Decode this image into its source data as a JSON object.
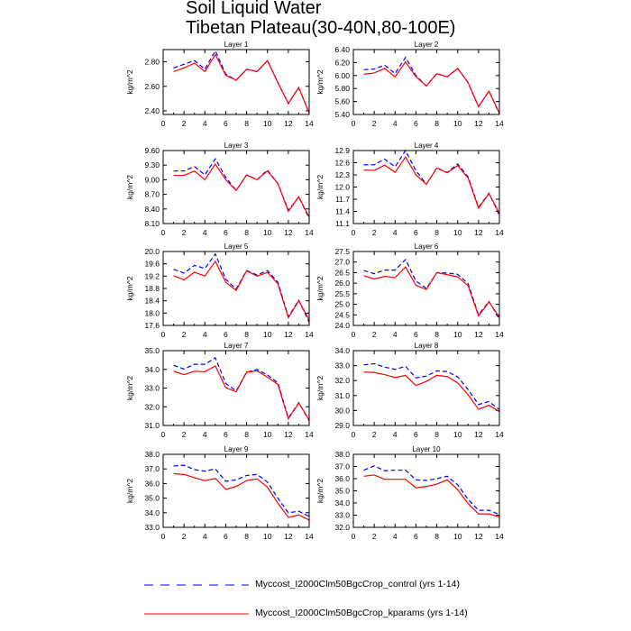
{
  "chart_data": {
    "type": "line",
    "title": "Soil Liquid Water",
    "subtitle": "Tibetan Plateau(30-40N,80-100E)",
    "x": [
      1,
      2,
      3,
      4,
      5,
      6,
      7,
      8,
      9,
      10,
      11,
      12,
      13,
      14
    ],
    "xlim": [
      0,
      14
    ],
    "xticks": [
      "0",
      "2",
      "4",
      "6",
      "8",
      "10",
      "12",
      "14"
    ],
    "ylabel": "kg/m^2",
    "legend": {
      "position": "bottom",
      "entries": [
        {
          "name": "Myccost_I2000Clm50BgcCrop_control (yrs 1-14)",
          "color": "#0000ff",
          "style": "dashed"
        },
        {
          "name": "Myccost_I2000Clm50BgcCrop_kparams (yrs 1-14)",
          "color": "#ff0000",
          "style": "solid"
        }
      ]
    },
    "panels": [
      {
        "title": "Layer 1",
        "ylim": [
          2.37,
          2.9
        ],
        "yticks": [
          "2.40",
          "2.60",
          "2.80"
        ],
        "control": [
          2.75,
          2.78,
          2.81,
          2.74,
          2.89,
          2.7,
          2.65,
          2.74,
          2.72,
          2.81,
          2.63,
          2.46,
          2.59,
          2.38
        ],
        "kparams": [
          2.72,
          2.75,
          2.79,
          2.72,
          2.86,
          2.69,
          2.65,
          2.74,
          2.72,
          2.81,
          2.63,
          2.46,
          2.59,
          2.38
        ]
      },
      {
        "title": "Layer 2",
        "ylim": [
          5.4,
          6.4
        ],
        "yticks": [
          "5.40",
          "5.60",
          "5.80",
          "6.00",
          "6.20",
          "6.40"
        ],
        "control": [
          6.09,
          6.1,
          6.16,
          6.03,
          6.28,
          6.0,
          5.84,
          6.03,
          5.98,
          6.11,
          5.89,
          5.52,
          5.76,
          5.41
        ],
        "kparams": [
          6.02,
          6.04,
          6.11,
          5.98,
          6.21,
          5.98,
          5.84,
          6.03,
          5.98,
          6.11,
          5.89,
          5.52,
          5.76,
          5.42
        ]
      },
      {
        "title": "Layer 3",
        "ylim": [
          8.1,
          9.6
        ],
        "yticks": [
          "8.10",
          "8.40",
          "8.70",
          "9.00",
          "9.30",
          "9.60"
        ],
        "control": [
          9.18,
          9.18,
          9.27,
          9.1,
          9.43,
          9.05,
          8.78,
          9.1,
          9.0,
          9.2,
          8.92,
          8.37,
          8.65,
          8.2
        ],
        "kparams": [
          9.09,
          9.09,
          9.18,
          9.0,
          9.32,
          9.0,
          8.78,
          9.1,
          9.0,
          9.18,
          8.92,
          8.35,
          8.65,
          8.23
        ]
      },
      {
        "title": "Layer 4",
        "ylim": [
          11.1,
          12.9
        ],
        "yticks": [
          "11.1",
          "11.4",
          "11.7",
          "12.0",
          "12.3",
          "12.6",
          "12.9"
        ],
        "control": [
          12.55,
          12.55,
          12.69,
          12.5,
          12.9,
          12.4,
          12.07,
          12.47,
          12.36,
          12.57,
          12.25,
          11.5,
          11.85,
          11.3
        ],
        "kparams": [
          12.42,
          12.41,
          12.54,
          12.36,
          12.74,
          12.3,
          12.07,
          12.47,
          12.35,
          12.53,
          12.22,
          11.48,
          11.84,
          11.35
        ]
      },
      {
        "title": "Layer 5",
        "ylim": [
          17.6,
          20.0
        ],
        "yticks": [
          "17.6",
          "18.0",
          "18.4",
          "18.8",
          "19.2",
          "19.6",
          "20.0"
        ],
        "control": [
          19.42,
          19.3,
          19.55,
          19.45,
          19.92,
          19.1,
          18.78,
          19.38,
          19.24,
          19.38,
          19.0,
          17.88,
          18.42,
          17.7
        ],
        "kparams": [
          19.21,
          19.08,
          19.33,
          19.2,
          19.68,
          19.0,
          18.74,
          19.37,
          19.2,
          19.32,
          18.95,
          17.85,
          18.4,
          17.78
        ]
      },
      {
        "title": "Layer 6",
        "ylim": [
          24.0,
          27.5
        ],
        "yticks": [
          "24.0",
          "24.5",
          "25.0",
          "25.5",
          "26.0",
          "26.5",
          "27.0",
          "27.5"
        ],
        "control": [
          26.6,
          26.45,
          26.62,
          26.62,
          27.12,
          26.1,
          25.75,
          26.5,
          26.48,
          26.42,
          25.98,
          24.5,
          25.14,
          24.3
        ],
        "kparams": [
          26.35,
          26.2,
          26.32,
          26.26,
          26.77,
          25.9,
          25.7,
          26.5,
          26.4,
          26.3,
          25.88,
          24.45,
          25.12,
          24.38
        ]
      },
      {
        "title": "Layer 7",
        "ylim": [
          31.0,
          35.0
        ],
        "yticks": [
          "31.0",
          "32.0",
          "33.0",
          "34.0",
          "35.0"
        ],
        "control": [
          34.22,
          34.02,
          34.27,
          34.27,
          34.62,
          33.25,
          32.85,
          33.85,
          34.0,
          33.7,
          33.28,
          31.4,
          32.22,
          31.25
        ],
        "kparams": [
          33.9,
          33.72,
          33.9,
          33.87,
          34.18,
          33.02,
          32.8,
          33.85,
          33.92,
          33.58,
          33.2,
          31.35,
          32.2,
          31.3
        ]
      },
      {
        "title": "Layer 8",
        "ylim": [
          29.0,
          34.0
        ],
        "yticks": [
          "29.0",
          "30.0",
          "31.0",
          "32.0",
          "33.0",
          "34.0"
        ],
        "control": [
          33.05,
          33.13,
          32.9,
          32.75,
          32.95,
          32.18,
          32.3,
          32.65,
          32.6,
          32.25,
          31.4,
          30.4,
          30.6,
          30.05
        ],
        "kparams": [
          32.57,
          32.54,
          32.4,
          32.2,
          32.35,
          31.67,
          31.95,
          32.35,
          32.27,
          31.85,
          31.05,
          30.08,
          30.35,
          29.92
        ]
      },
      {
        "title": "Layer 9",
        "ylim": [
          33.0,
          38.0
        ],
        "yticks": [
          "33.0",
          "34.0",
          "35.0",
          "36.0",
          "37.0",
          "38.0"
        ],
        "control": [
          37.2,
          37.25,
          36.95,
          36.85,
          37.0,
          36.15,
          36.25,
          36.55,
          36.62,
          36.1,
          35.0,
          34.0,
          34.1,
          33.75
        ],
        "kparams": [
          36.68,
          36.62,
          36.4,
          36.2,
          36.35,
          35.6,
          35.8,
          36.2,
          36.32,
          35.75,
          34.65,
          33.68,
          33.85,
          33.5
        ]
      },
      {
        "title": "Layer 10",
        "ylim": [
          32.0,
          38.0
        ],
        "yticks": [
          "32.0",
          "33.0",
          "34.0",
          "35.0",
          "36.0",
          "37.0",
          "38.0"
        ],
        "control": [
          36.7,
          37.05,
          36.65,
          36.7,
          36.7,
          35.9,
          35.85,
          36.0,
          36.2,
          35.5,
          34.3,
          33.4,
          33.4,
          33.05
        ],
        "kparams": [
          36.2,
          36.3,
          35.95,
          35.95,
          35.95,
          35.25,
          35.35,
          35.55,
          35.9,
          35.1,
          33.95,
          33.1,
          33.1,
          32.85
        ]
      }
    ]
  }
}
